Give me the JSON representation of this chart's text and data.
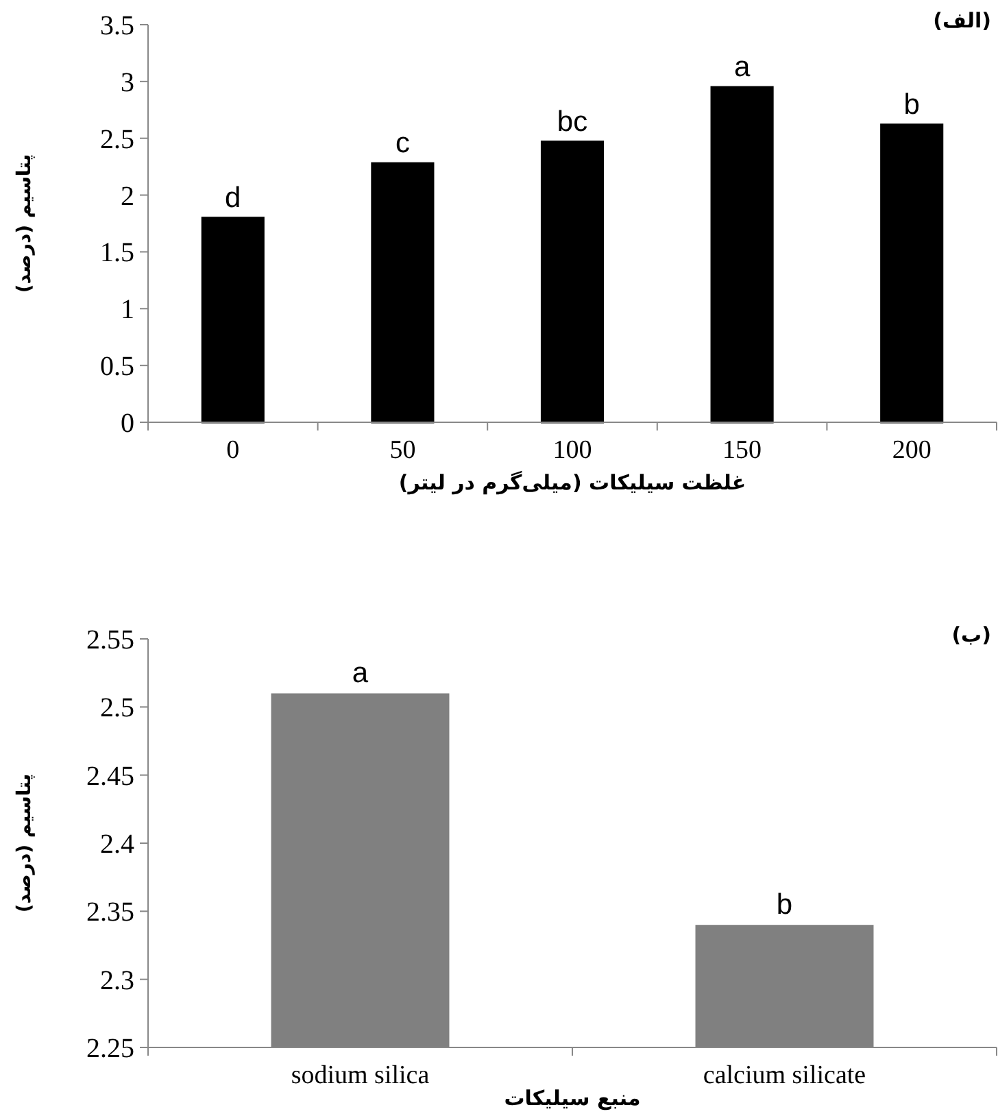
{
  "chart_data": [
    {
      "type": "bar",
      "title": "(الف)",
      "xlabel": "غلظت سیلیکات (میلی‌گرم در لیتر)",
      "ylabel": "پتاسیم (درصد)",
      "categories": [
        "0",
        "50",
        "100",
        "150",
        "200"
      ],
      "series": [
        {
          "color": "#000000",
          "values": [
            1.8,
            2.28,
            2.47,
            2.95,
            2.62
          ]
        }
      ],
      "ylim": [
        0,
        3.5
      ],
      "yticks": [
        0,
        0.5,
        1,
        1.5,
        2,
        2.5,
        3,
        3.5
      ],
      "grid": false,
      "annotations": [
        {
          "text": "d",
          "x": "0",
          "y": 1.8
        },
        {
          "text": "c",
          "x": "50",
          "y": 2.28
        },
        {
          "text": "bc",
          "x": "100",
          "y": 2.47
        },
        {
          "text": "a",
          "x": "150",
          "y": 2.95
        },
        {
          "text": "b",
          "x": "200",
          "y": 2.62
        }
      ]
    },
    {
      "type": "bar",
      "title": "(ب)",
      "xlabel": "منبع سیلیکات",
      "ylabel": "پتاسیم (درصد)",
      "categories": [
        "sodium silica",
        "calcium silicate"
      ],
      "series": [
        {
          "color": "#808080",
          "values": [
            2.51,
            2.34
          ]
        }
      ],
      "ylim": [
        2.25,
        2.55
      ],
      "yticks": [
        2.25,
        2.3,
        2.35,
        2.4,
        2.45,
        2.5,
        2.55
      ],
      "grid": false,
      "annotations": [
        {
          "text": "a",
          "x": "sodium silica",
          "y": 2.51
        },
        {
          "text": "b",
          "x": "calcium silicate",
          "y": 2.34
        }
      ]
    }
  ]
}
